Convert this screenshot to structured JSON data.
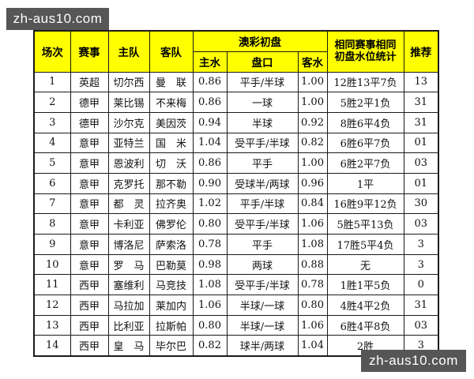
{
  "watermark_top": {
    "text": "zh-aus10.com"
  },
  "watermark_bottom": {
    "text": "zh-aus10.com"
  },
  "colors": {
    "header_bg": "#FFFF00",
    "border": "#1A1A1A",
    "watermark_bg": "#565656",
    "watermark_text": "#FFFFFF"
  },
  "table": {
    "headers": {
      "match_no": "场次",
      "league": "赛事",
      "home_team": "主队",
      "away_team": "客队",
      "odds_group": "澳彩初盘",
      "home_water": "主水",
      "handicap": "盘口",
      "away_water": "客水",
      "stats_line1": "相同赛事相同",
      "stats_line2": "初盘水位统计",
      "recommendation": "推荐"
    },
    "rows": [
      {
        "no": "1",
        "league": "英超",
        "home": "切尔西",
        "away": "曼　联",
        "hw": "0.86",
        "handicap": "平手/半球",
        "aw": "1.00",
        "stats": "12胜13平7负",
        "rec": "13"
      },
      {
        "no": "2",
        "league": "德甲",
        "home": "莱比锡",
        "away": "不来梅",
        "hw": "0.86",
        "handicap": "一球",
        "aw": "1.00",
        "stats": "5胜2平1负",
        "rec": "31"
      },
      {
        "no": "3",
        "league": "德甲",
        "home": "沙尔克",
        "away": "美因茨",
        "hw": "0.94",
        "handicap": "半球",
        "aw": "0.92",
        "stats": "8胜6平4负",
        "rec": "31"
      },
      {
        "no": "4",
        "league": "意甲",
        "home": "亚特兰",
        "away": "国　米",
        "hw": "1.04",
        "handicap": "受平手/半球",
        "aw": "0.82",
        "stats": "6胜6平7负",
        "rec": "01"
      },
      {
        "no": "5",
        "league": "意甲",
        "home": "恩波利",
        "away": "切　沃",
        "hw": "0.86",
        "handicap": "平手",
        "aw": "1.00",
        "stats": "6胜2平7负",
        "rec": "03"
      },
      {
        "no": "6",
        "league": "意甲",
        "home": "克罗托",
        "away": "那不勒",
        "hw": "0.90",
        "handicap": "受球半/两球",
        "aw": "0.96",
        "stats": "1平",
        "rec": "01"
      },
      {
        "no": "7",
        "league": "意甲",
        "home": "都　灵",
        "away": "拉齐奥",
        "hw": "1.02",
        "handicap": "平手/半球",
        "aw": "0.84",
        "stats": "16胜9平12负",
        "rec": "30"
      },
      {
        "no": "8",
        "league": "意甲",
        "home": "卡利亚",
        "away": "佛罗伦",
        "hw": "0.80",
        "handicap": "受平手/半球",
        "aw": "1.06",
        "stats": "5胜5平13负",
        "rec": "03"
      },
      {
        "no": "9",
        "league": "意甲",
        "home": "博洛尼",
        "away": "萨索洛",
        "hw": "0.78",
        "handicap": "平手",
        "aw": "1.08",
        "stats": "17胜5平4负",
        "rec": "3"
      },
      {
        "no": "10",
        "league": "意甲",
        "home": "罗　马",
        "away": "巴勒莫",
        "hw": "0.98",
        "handicap": "两球",
        "aw": "0.88",
        "stats": "无",
        "rec": "3"
      },
      {
        "no": "11",
        "league": "西甲",
        "home": "塞维利",
        "away": "马竞技",
        "hw": "1.08",
        "handicap": "受平手/半球",
        "aw": "0.78",
        "stats": "1胜1平5负",
        "rec": "0"
      },
      {
        "no": "12",
        "league": "西甲",
        "home": "马拉加",
        "away": "莱加内",
        "hw": "1.06",
        "handicap": "半球/一球",
        "aw": "0.80",
        "stats": "4胜4平2负",
        "rec": "31"
      },
      {
        "no": "13",
        "league": "西甲",
        "home": "比利亚",
        "away": "拉斯帕",
        "hw": "0.80",
        "handicap": "半球/一球",
        "aw": "1.06",
        "stats": "6胜4平8负",
        "rec": "03"
      },
      {
        "no": "14",
        "league": "西甲",
        "home": "皇　马",
        "away": "毕尔巴",
        "hw": "0.82",
        "handicap": "球半/两球",
        "aw": "1.04",
        "stats": "2胜",
        "rec": "3"
      }
    ]
  }
}
